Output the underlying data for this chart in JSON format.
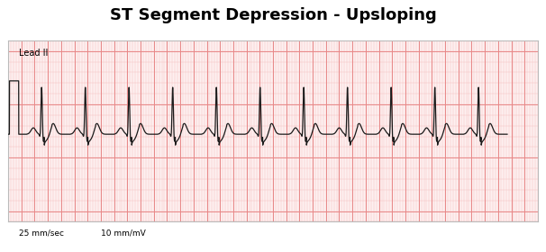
{
  "title": "ST Segment Depression - Upsloping",
  "lead_label": "Lead II",
  "speed_label": "25 mm/sec",
  "gain_label": "10 mm/mV",
  "grid_minor_color": "#F5BFBF",
  "grid_major_color": "#E88888",
  "ecg_color": "#1a1a1a",
  "paper_bg": "#FDF0F0",
  "title_fontsize": 13,
  "ecg_linewidth": 0.9,
  "num_beats": 11,
  "beat_interval": 0.66,
  "sample_rate": 500,
  "total_time": 8.0,
  "cal_amp": 0.5,
  "r_amp": 0.45,
  "p_amp": 0.06,
  "q_amp": 0.04,
  "s_amp": 0.08,
  "t_amp": 0.1,
  "st_depress": 0.08,
  "baseline_y": 0.0,
  "y_min": -0.6,
  "y_max": 1.1
}
